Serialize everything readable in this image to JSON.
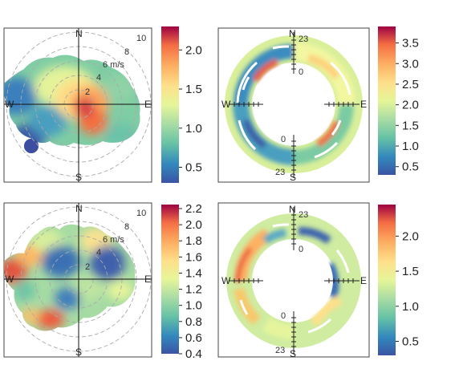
{
  "chart_data": [
    {
      "type": "heatmap",
      "subtype": "polar-plot",
      "title": "",
      "compass": [
        "N",
        "E",
        "S",
        "W"
      ],
      "ring_labels": [
        "2",
        "4",
        "6 m/s",
        "8",
        "10"
      ],
      "colorbar": {
        "ticks": [
          "0.5",
          "1.0",
          "1.5",
          "2.0"
        ],
        "range": [
          0.3,
          2.3
        ]
      }
    },
    {
      "type": "heatmap",
      "subtype": "polar-annulus",
      "title": "",
      "compass": [
        "N",
        "E",
        "S",
        "W"
      ],
      "hour_labels": [
        "23",
        "0",
        "0",
        "23"
      ],
      "colorbar": {
        "ticks": [
          "0.5",
          "1.0",
          "1.5",
          "2.0",
          "2.5",
          "3.0",
          "3.5"
        ],
        "range": [
          0.3,
          3.9
        ]
      }
    },
    {
      "type": "heatmap",
      "subtype": "polar-plot",
      "title": "",
      "compass": [
        "N",
        "E",
        "S",
        "W"
      ],
      "ring_labels": [
        "2",
        "4",
        "6 m/s",
        "8",
        "10"
      ],
      "colorbar": {
        "ticks": [
          "0.4",
          "0.6",
          "0.8",
          "1.0",
          "1.2",
          "1.4",
          "1.6",
          "1.8",
          "2.0",
          "2.2"
        ],
        "range": [
          0.4,
          2.25
        ]
      }
    },
    {
      "type": "heatmap",
      "subtype": "polar-annulus",
      "title": "",
      "compass": [
        "N",
        "E",
        "S",
        "W"
      ],
      "hour_labels": [
        "23",
        "0",
        "0",
        "23"
      ],
      "colorbar": {
        "ticks": [
          "0.5",
          "1.0",
          "1.5",
          "2.0"
        ],
        "range": [
          0.3,
          2.45
        ]
      }
    }
  ]
}
